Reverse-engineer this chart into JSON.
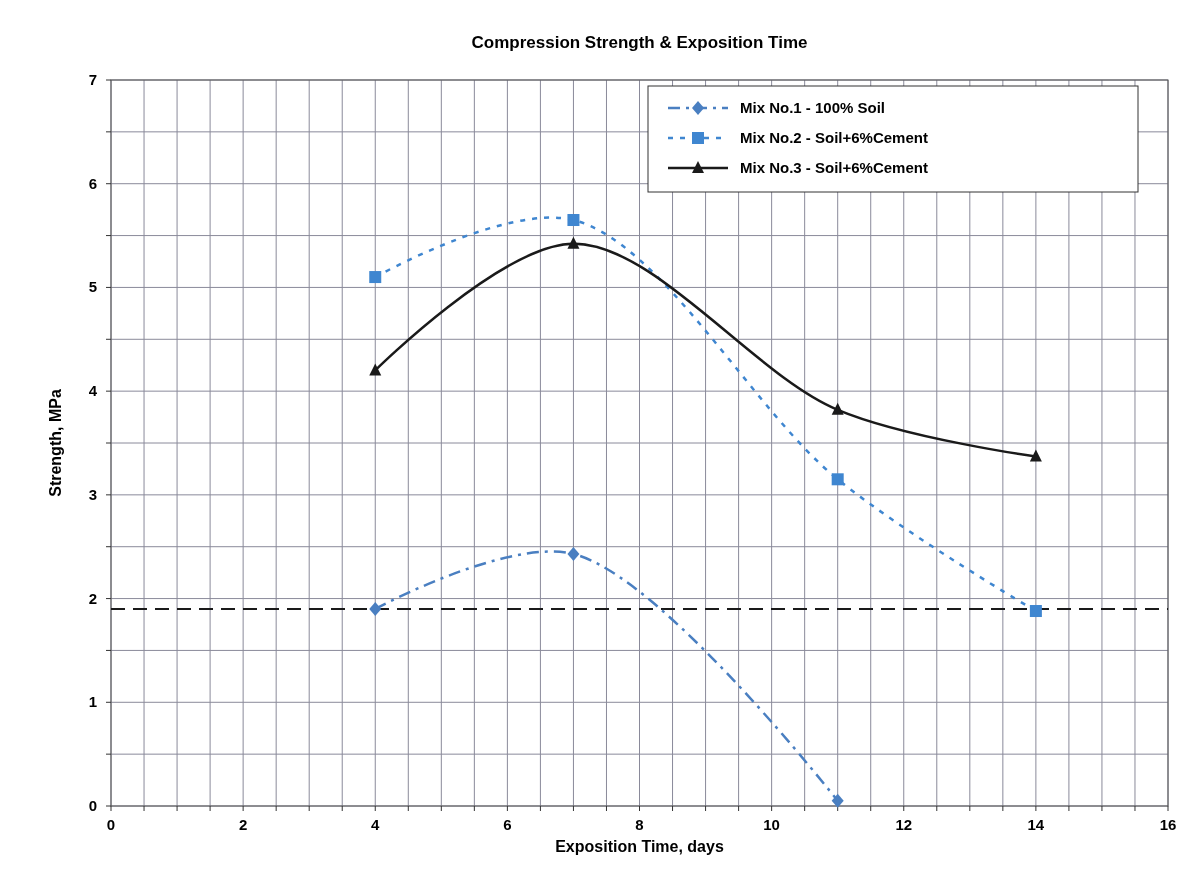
{
  "chart_data": {
    "type": "line",
    "title": "Compression Strength & Exposition Time",
    "xlabel": "Exposition Time, days",
    "ylabel": "Strength, MPa",
    "xlim": [
      0,
      16
    ],
    "xticks": [
      0,
      {
        "value": 0.5,
        "label": null
      },
      2,
      {
        "value": 1.5,
        "label": null
      },
      {
        "value": 1,
        "label": null
      },
      {
        "value": 2.5,
        "label": null
      },
      {
        "value": 3,
        "label": null
      },
      {
        "value": 3.5,
        "label": null
      },
      4,
      {
        "value": 4.5,
        "label": null
      },
      {
        "value": 5,
        "label": null
      },
      {
        "value": 5.5,
        "label": null
      },
      6,
      {
        "value": 6.5,
        "label": null
      },
      {
        "value": 7,
        "label": null
      },
      {
        "value": 7.5,
        "label": null
      },
      8,
      {
        "value": 8.5,
        "label": null
      },
      {
        "value": 9,
        "label": null
      },
      {
        "value": 9.5,
        "label": null
      },
      10,
      {
        "value": 10.5,
        "label": null
      },
      {
        "value": 11,
        "label": null
      },
      {
        "value": 11.5,
        "label": null
      },
      12,
      {
        "value": 12.5,
        "label": null
      },
      {
        "value": 13,
        "label": null
      },
      {
        "value": 13.5,
        "label": null
      },
      14,
      {
        "value": 14.5,
        "label": null
      },
      {
        "value": 15,
        "label": null
      },
      {
        "value": 15.5,
        "label": null
      },
      16
    ],
    "ylim": [
      0,
      7
    ],
    "yticks": [
      0,
      {
        "value": 0.5,
        "label": null
      },
      1,
      {
        "value": 1.5,
        "label": null
      },
      2,
      {
        "value": 2.5,
        "label": null
      },
      3,
      {
        "value": 3.5,
        "label": null
      },
      4,
      {
        "value": 4.5,
        "label": null
      },
      5,
      {
        "value": 5.5,
        "label": null
      },
      6,
      {
        "value": 6.5,
        "label": null
      },
      7
    ],
    "grid": true,
    "legend": "top right",
    "series": [
      {
        "name": "Mix No.1 - 100% Soil",
        "color": "#4a7fc1",
        "marker": "diamond",
        "line_style": "dashdot",
        "x": [
          4,
          7,
          11
        ],
        "values": [
          1.9,
          2.43,
          0.05
        ]
      },
      {
        "name": "Mix No.2 - Soil+6%Cement",
        "color": "#3f86d0",
        "marker": "square",
        "line_style": "dotted",
        "x": [
          4,
          7,
          11,
          14
        ],
        "values": [
          5.1,
          5.65,
          3.15,
          1.88
        ]
      },
      {
        "name": "Mix No.3 - Soil+6%Cement",
        "color": "#1a1a1a",
        "marker": "triangle",
        "line_style": "solid",
        "x": [
          4,
          7,
          11,
          14
        ],
        "values": [
          4.2,
          5.42,
          3.82,
          3.37
        ]
      }
    ],
    "ref_lines": [
      {
        "axis": "y",
        "value": 1.9,
        "color": "#1a1a1a",
        "line_style": "dashed"
      }
    ]
  }
}
